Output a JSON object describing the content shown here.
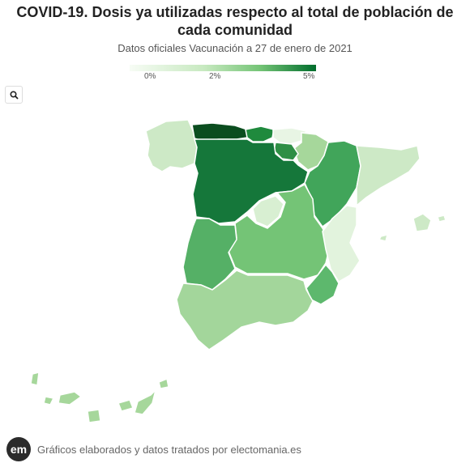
{
  "title": "COVID-19. Dosis ya utilizadas respecto al total de población de cada comunidad",
  "subtitle": "Datos oficiales Vacunación a 27 de enero de 2021",
  "legend": {
    "min_label": "0%",
    "mid_label": "2%",
    "max_label": "5%",
    "colors": [
      "#f7fcf5",
      "#c7e9c0",
      "#74c476",
      "#006d2c"
    ]
  },
  "controls": {
    "search_icon": "search-icon"
  },
  "footer": {
    "logo_text": "em",
    "text": "Gráficos elaborados y datos tratados por electomania.es"
  },
  "regions": [
    {
      "id": "galicia",
      "color": "#cde9c6"
    },
    {
      "id": "asturias",
      "color": "#0b4d1f"
    },
    {
      "id": "cantabria",
      "color": "#1f8a3d"
    },
    {
      "id": "pais-vasco",
      "color": "#e8f5e4"
    },
    {
      "id": "navarra",
      "color": "#a6d79b"
    },
    {
      "id": "la-rioja",
      "color": "#2e8f45"
    },
    {
      "id": "aragon",
      "color": "#41a55a"
    },
    {
      "id": "cataluna",
      "color": "#cde9c6"
    },
    {
      "id": "castilla-leon",
      "color": "#15773a"
    },
    {
      "id": "madrid",
      "color": "#d8efd2"
    },
    {
      "id": "castilla-la-mancha",
      "color": "#74c476"
    },
    {
      "id": "valencia",
      "color": "#e2f3dd"
    },
    {
      "id": "extremadura",
      "color": "#55b066"
    },
    {
      "id": "andalucia",
      "color": "#a3d69b"
    },
    {
      "id": "murcia",
      "color": "#5db86d"
    },
    {
      "id": "baleares",
      "color": "#cde9c6"
    },
    {
      "id": "canarias",
      "color": "#a6d79b"
    }
  ]
}
